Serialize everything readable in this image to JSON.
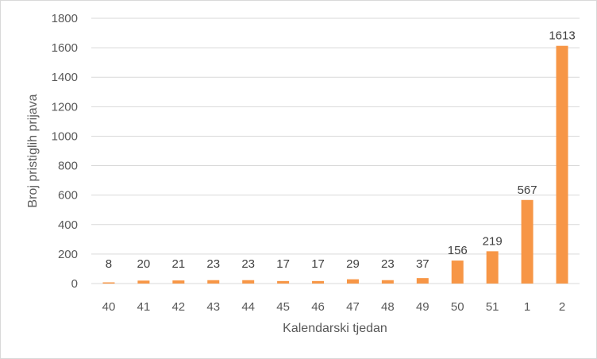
{
  "chart_data": {
    "type": "bar",
    "title": "",
    "xlabel": "Kalendarski tjedan",
    "ylabel": "Broj pristiglih prijava",
    "categories": [
      "40",
      "41",
      "42",
      "43",
      "44",
      "45",
      "46",
      "47",
      "48",
      "49",
      "50",
      "51",
      "1",
      "2"
    ],
    "values": [
      8,
      20,
      21,
      23,
      23,
      17,
      17,
      29,
      23,
      37,
      156,
      219,
      567,
      1613
    ],
    "ylim": [
      0,
      1800
    ],
    "yticks": [
      0,
      200,
      400,
      600,
      800,
      1000,
      1200,
      1400,
      1600,
      1800
    ],
    "grid": true,
    "legend": "none",
    "data_labels": true,
    "bar_color": "#F79646"
  }
}
